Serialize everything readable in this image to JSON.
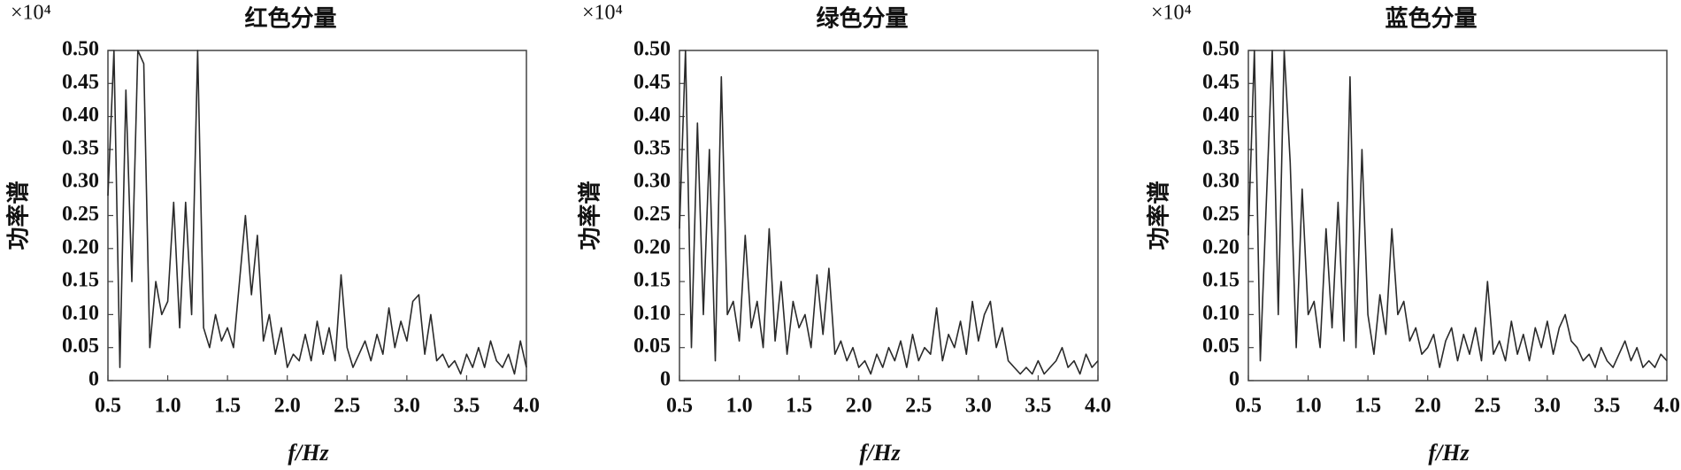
{
  "chart_data": [
    {
      "type": "line",
      "title": "红色分量",
      "y_multiplier": "×10⁴",
      "xlabel": "f/Hz",
      "ylabel": "功率谱",
      "color": "#2a2a2a",
      "x": [
        0.5,
        0.55,
        0.6,
        0.65,
        0.7,
        0.75,
        0.8,
        0.85,
        0.9,
        0.95,
        1.0,
        1.05,
        1.1,
        1.15,
        1.2,
        1.25,
        1.3,
        1.35,
        1.4,
        1.45,
        1.5,
        1.55,
        1.6,
        1.65,
        1.7,
        1.75,
        1.8,
        1.85,
        1.9,
        1.95,
        2.0,
        2.05,
        2.1,
        2.15,
        2.2,
        2.25,
        2.3,
        2.35,
        2.4,
        2.45,
        2.5,
        2.55,
        2.6,
        2.65,
        2.7,
        2.75,
        2.8,
        2.85,
        2.9,
        2.95,
        3.0,
        3.05,
        3.1,
        3.15,
        3.2,
        3.25,
        3.3,
        3.35,
        3.4,
        3.45,
        3.5,
        3.55,
        3.6,
        3.65,
        3.7,
        3.75,
        3.8,
        3.85,
        3.9,
        3.95,
        4.0
      ],
      "values": [
        0.28,
        0.5,
        0.02,
        0.44,
        0.15,
        0.5,
        0.48,
        0.05,
        0.15,
        0.1,
        0.12,
        0.27,
        0.08,
        0.27,
        0.1,
        0.5,
        0.08,
        0.05,
        0.1,
        0.06,
        0.08,
        0.05,
        0.15,
        0.25,
        0.13,
        0.22,
        0.06,
        0.1,
        0.04,
        0.08,
        0.02,
        0.04,
        0.03,
        0.07,
        0.03,
        0.09,
        0.04,
        0.08,
        0.03,
        0.16,
        0.05,
        0.02,
        0.04,
        0.06,
        0.03,
        0.07,
        0.04,
        0.11,
        0.05,
        0.09,
        0.06,
        0.12,
        0.13,
        0.04,
        0.1,
        0.03,
        0.04,
        0.02,
        0.03,
        0.01,
        0.04,
        0.02,
        0.05,
        0.02,
        0.06,
        0.03,
        0.02,
        0.04,
        0.01,
        0.06,
        0.02
      ],
      "xlim": [
        0.5,
        4.0
      ],
      "ylim": [
        0,
        0.5
      ],
      "xticks": [
        0.5,
        {
          "value": 1,
          "label": "1.0"
        },
        1.5,
        {
          "value": 2,
          "label": "2.0"
        },
        2.5,
        {
          "value": 3,
          "label": "3.0"
        },
        3.5,
        {
          "value": 4,
          "label": "4.0"
        }
      ],
      "yticks": [
        0,
        0.05,
        {
          "value": 0.1,
          "label": "0.10"
        },
        0.15,
        {
          "value": 0.2,
          "label": "0.20"
        },
        0.25,
        {
          "value": 0.3,
          "label": "0.30"
        },
        0.35,
        {
          "value": 0.4,
          "label": "0.40"
        },
        0.45,
        {
          "value": 0.5,
          "label": "0.50"
        }
      ]
    },
    {
      "type": "line",
      "title": "绿色分量",
      "y_multiplier": "×10⁴",
      "xlabel": "f/Hz",
      "ylabel": "功率谱",
      "color": "#2a2a2a",
      "x": [
        0.5,
        0.55,
        0.6,
        0.65,
        0.7,
        0.75,
        0.8,
        0.85,
        0.9,
        0.95,
        1.0,
        1.05,
        1.1,
        1.15,
        1.2,
        1.25,
        1.3,
        1.35,
        1.4,
        1.45,
        1.5,
        1.55,
        1.6,
        1.65,
        1.7,
        1.75,
        1.8,
        1.85,
        1.9,
        1.95,
        2.0,
        2.05,
        2.1,
        2.15,
        2.2,
        2.25,
        2.3,
        2.35,
        2.4,
        2.45,
        2.5,
        2.55,
        2.6,
        2.65,
        2.7,
        2.75,
        2.8,
        2.85,
        2.9,
        2.95,
        3.0,
        3.05,
        3.1,
        3.15,
        3.2,
        3.25,
        3.3,
        3.35,
        3.4,
        3.45,
        3.5,
        3.55,
        3.6,
        3.65,
        3.7,
        3.75,
        3.8,
        3.85,
        3.9,
        3.95,
        4.0
      ],
      "values": [
        0.23,
        0.5,
        0.05,
        0.39,
        0.1,
        0.35,
        0.03,
        0.46,
        0.1,
        0.12,
        0.06,
        0.22,
        0.08,
        0.12,
        0.05,
        0.23,
        0.06,
        0.15,
        0.04,
        0.12,
        0.08,
        0.1,
        0.05,
        0.16,
        0.07,
        0.17,
        0.04,
        0.06,
        0.03,
        0.05,
        0.02,
        0.03,
        0.01,
        0.04,
        0.02,
        0.05,
        0.03,
        0.06,
        0.02,
        0.07,
        0.03,
        0.05,
        0.04,
        0.11,
        0.03,
        0.07,
        0.05,
        0.09,
        0.04,
        0.12,
        0.06,
        0.1,
        0.12,
        0.05,
        0.08,
        0.03,
        0.02,
        0.01,
        0.02,
        0.01,
        0.03,
        0.01,
        0.02,
        0.03,
        0.05,
        0.02,
        0.03,
        0.01,
        0.04,
        0.02,
        0.03
      ],
      "xlim": [
        0.5,
        4.0
      ],
      "ylim": [
        0,
        0.5
      ],
      "xticks": [
        0.5,
        {
          "value": 1,
          "label": "1.0"
        },
        1.5,
        {
          "value": 2,
          "label": "2.0"
        },
        2.5,
        {
          "value": 3,
          "label": "3.0"
        },
        3.5,
        {
          "value": 4,
          "label": "4.0"
        }
      ],
      "yticks": [
        0,
        0.05,
        {
          "value": 0.1,
          "label": "0.10"
        },
        0.15,
        {
          "value": 0.2,
          "label": "0.20"
        },
        0.25,
        {
          "value": 0.3,
          "label": "0.30"
        },
        0.35,
        {
          "value": 0.4,
          "label": "0.40"
        },
        0.45,
        {
          "value": 0.5,
          "label": "0.50"
        }
      ]
    },
    {
      "type": "line",
      "title": "蓝色分量",
      "y_multiplier": "×10⁴",
      "xlabel": "f/Hz",
      "ylabel": "功率谱",
      "color": "#2a2a2a",
      "x": [
        0.5,
        0.55,
        0.6,
        0.65,
        0.7,
        0.75,
        0.8,
        0.85,
        0.9,
        0.95,
        1.0,
        1.05,
        1.1,
        1.15,
        1.2,
        1.25,
        1.3,
        1.35,
        1.4,
        1.45,
        1.5,
        1.55,
        1.6,
        1.65,
        1.7,
        1.75,
        1.8,
        1.85,
        1.9,
        1.95,
        2.0,
        2.05,
        2.1,
        2.15,
        2.2,
        2.25,
        2.3,
        2.35,
        2.4,
        2.45,
        2.5,
        2.55,
        2.6,
        2.65,
        2.7,
        2.75,
        2.8,
        2.85,
        2.9,
        2.95,
        3.0,
        3.05,
        3.1,
        3.15,
        3.2,
        3.25,
        3.3,
        3.35,
        3.4,
        3.45,
        3.5,
        3.55,
        3.6,
        3.65,
        3.7,
        3.75,
        3.8,
        3.85,
        3.9,
        3.95,
        4.0
      ],
      "values": [
        0.22,
        0.5,
        0.03,
        0.27,
        0.5,
        0.1,
        0.5,
        0.33,
        0.05,
        0.29,
        0.1,
        0.12,
        0.05,
        0.23,
        0.08,
        0.27,
        0.06,
        0.46,
        0.05,
        0.35,
        0.1,
        0.04,
        0.13,
        0.07,
        0.23,
        0.1,
        0.12,
        0.06,
        0.08,
        0.04,
        0.05,
        0.07,
        0.02,
        0.06,
        0.08,
        0.03,
        0.07,
        0.04,
        0.08,
        0.03,
        0.15,
        0.04,
        0.06,
        0.03,
        0.09,
        0.04,
        0.07,
        0.03,
        0.08,
        0.05,
        0.09,
        0.04,
        0.08,
        0.1,
        0.06,
        0.05,
        0.03,
        0.04,
        0.02,
        0.05,
        0.03,
        0.02,
        0.04,
        0.06,
        0.03,
        0.05,
        0.02,
        0.03,
        0.02,
        0.04,
        0.03
      ],
      "xlim": [
        0.5,
        4.0
      ],
      "ylim": [
        0,
        0.5
      ],
      "xticks": [
        0.5,
        {
          "value": 1,
          "label": "1.0"
        },
        1.5,
        {
          "value": 2,
          "label": "2.0"
        },
        2.5,
        {
          "value": 3,
          "label": "3.0"
        },
        3.5,
        {
          "value": 4,
          "label": "4.0"
        }
      ],
      "yticks": [
        0,
        0.05,
        {
          "value": 0.1,
          "label": "0.10"
        },
        0.15,
        {
          "value": 0.2,
          "label": "0.20"
        },
        0.25,
        {
          "value": 0.3,
          "label": "0.30"
        },
        0.35,
        {
          "value": 0.4,
          "label": "0.40"
        },
        0.45,
        {
          "value": 0.5,
          "label": "0.50"
        }
      ]
    }
  ]
}
